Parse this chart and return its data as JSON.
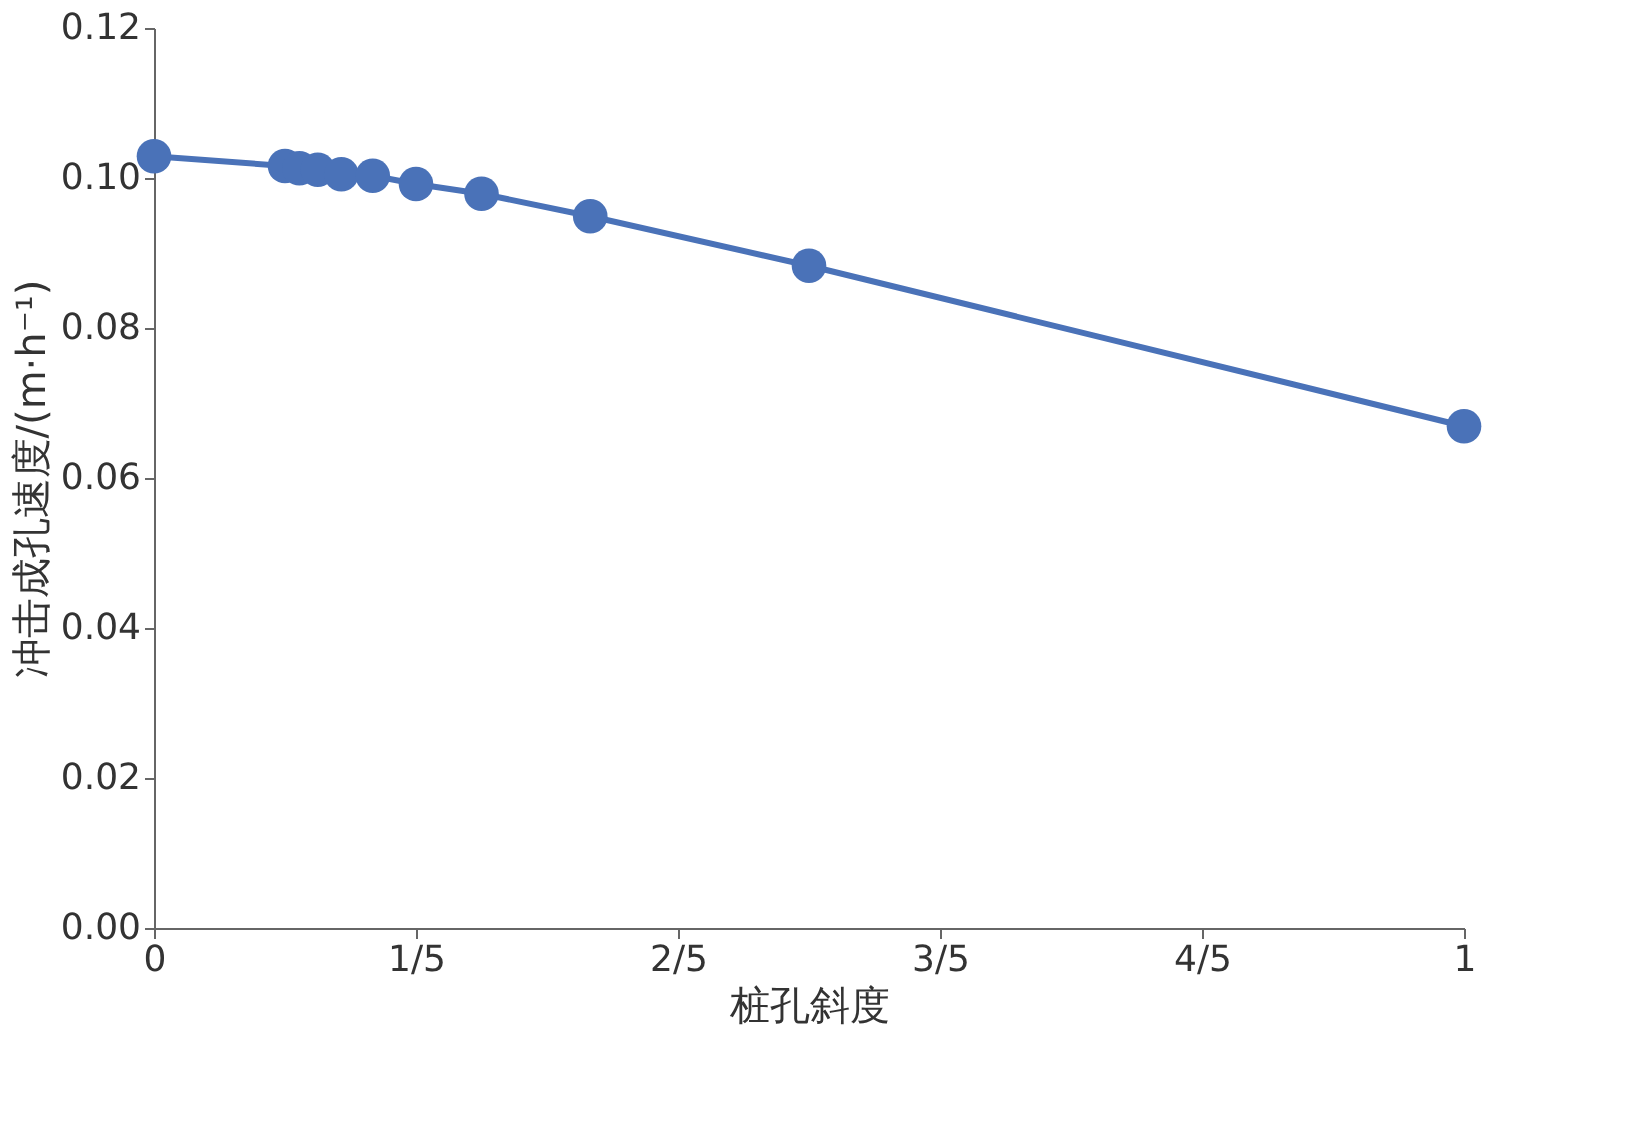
{
  "chart_data": {
    "type": "line",
    "xlabel": "桩孔斜度",
    "ylabel": "冲击成孔速度/(m·h⁻¹)",
    "x": [
      0,
      0.1,
      0.111,
      0.125,
      0.143,
      0.167,
      0.2,
      0.25,
      0.333,
      0.5,
      1
    ],
    "series": [
      {
        "color": "#4a72b8",
        "values": [
          0.1029,
          0.1016,
          0.1013,
          0.1011,
          0.1005,
          0.1003,
          0.0992,
          0.0979,
          0.0949,
          0.0883,
          0.0669
        ]
      }
    ],
    "xlim": [
      0,
      1
    ],
    "xticks": [
      0,
      {
        "value": 0.2,
        "label": "1/5"
      },
      {
        "value": 0.4,
        "label": "2/5"
      },
      {
        "value": 0.6,
        "label": "3/5"
      },
      {
        "value": 0.8,
        "label": "4/5"
      },
      1
    ],
    "ylim": [
      0,
      0.12
    ],
    "yticks": [
      {
        "value": 0,
        "label": "0.00"
      },
      {
        "value": 0.02,
        "label": "0.02"
      },
      {
        "value": 0.04,
        "label": "0.04"
      },
      {
        "value": 0.06,
        "label": "0.06"
      },
      {
        "value": 0.08,
        "label": "0.08"
      },
      {
        "value": 0.1,
        "label": "0.10"
      },
      {
        "value": 0.12,
        "label": "0.12"
      }
    ],
    "grid": false,
    "marker": "circle",
    "line_style": "solid"
  }
}
